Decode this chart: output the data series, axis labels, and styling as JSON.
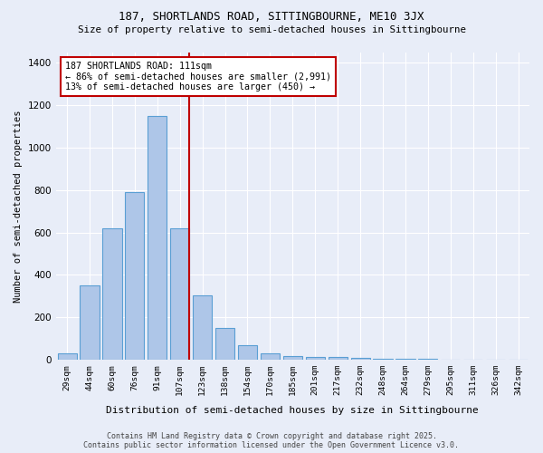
{
  "title1": "187, SHORTLANDS ROAD, SITTINGBOURNE, ME10 3JX",
  "title2": "Size of property relative to semi-detached houses in Sittingbourne",
  "xlabel": "Distribution of semi-detached houses by size in Sittingbourne",
  "ylabel": "Number of semi-detached properties",
  "bar_labels": [
    "29sqm",
    "44sqm",
    "60sqm",
    "76sqm",
    "91sqm",
    "107sqm",
    "123sqm",
    "138sqm",
    "154sqm",
    "170sqm",
    "185sqm",
    "201sqm",
    "217sqm",
    "232sqm",
    "248sqm",
    "264sqm",
    "279sqm",
    "295sqm",
    "311sqm",
    "326sqm",
    "342sqm"
  ],
  "bar_values": [
    28,
    350,
    620,
    790,
    1150,
    620,
    305,
    150,
    70,
    28,
    18,
    12,
    12,
    8,
    5,
    5,
    3,
    2,
    1,
    1,
    1
  ],
  "bar_color": "#aec6e8",
  "bar_edge_color": "#5a9fd4",
  "highlight_color": "#c00000",
  "vline_x_index": 5,
  "annotation_title": "187 SHORTLANDS ROAD: 111sqm",
  "annotation_line1": "← 86% of semi-detached houses are smaller (2,991)",
  "annotation_line2": "13% of semi-detached houses are larger (450) →",
  "annotation_box_color": "#ffffff",
  "annotation_box_edge": "#c00000",
  "ylim": [
    0,
    1450
  ],
  "yticks": [
    0,
    200,
    400,
    600,
    800,
    1000,
    1200,
    1400
  ],
  "footer1": "Contains HM Land Registry data © Crown copyright and database right 2025.",
  "footer2": "Contains public sector information licensed under the Open Government Licence v3.0.",
  "bg_color": "#e8edf8"
}
